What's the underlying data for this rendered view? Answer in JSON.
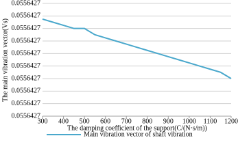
{
  "chart_data": {
    "type": "line",
    "x_label": "The damping coefficient of the support(C/(N·s/m))",
    "y_label": "The main vibration vector(Vs)",
    "x": [
      300,
      350,
      400,
      450,
      500,
      550,
      600,
      650,
      700,
      750,
      800,
      850,
      900,
      950,
      1000,
      1050,
      1100,
      1150,
      1200
    ],
    "series": [
      {
        "name": "Main vibration vector of shaft vibration",
        "color": "#4aa8cc",
        "values": [
          0.055642711,
          0.05564271,
          0.055642709,
          0.055642708,
          0.055642708,
          0.055642706,
          0.055642705,
          0.055642704,
          0.055642703,
          0.055642702,
          0.055642701,
          0.0556427,
          0.055642699,
          0.055642698,
          0.055642697,
          0.055642696,
          0.055642695,
          0.055642694,
          0.055642692
        ]
      }
    ],
    "xlim": [
      300,
      1200
    ],
    "xticks": [
      300,
      400,
      500,
      600,
      700,
      800,
      900,
      1000,
      1100,
      1200
    ],
    "ylim": [
      0.05564268,
      0.055642716
    ],
    "yticks": [
      {
        "value": 0.05564268,
        "label": "0.0556427"
      },
      {
        "value": 0.055642684,
        "label": "0.0556427"
      },
      {
        "value": 0.055642688,
        "label": "0.0556427"
      },
      {
        "value": 0.055642692,
        "label": "0.0556427"
      },
      {
        "value": 0.055642696,
        "label": "0.0556427"
      },
      {
        "value": 0.0556427,
        "label": "0.0556427"
      },
      {
        "value": 0.055642704,
        "label": "0.0556427"
      },
      {
        "value": 0.055642708,
        "label": "0.0556427"
      },
      {
        "value": 0.055642712,
        "label": "0.0556427"
      },
      {
        "value": 0.055642716,
        "label": "0.0556427"
      }
    ],
    "grid": true,
    "legend": "bottom"
  }
}
